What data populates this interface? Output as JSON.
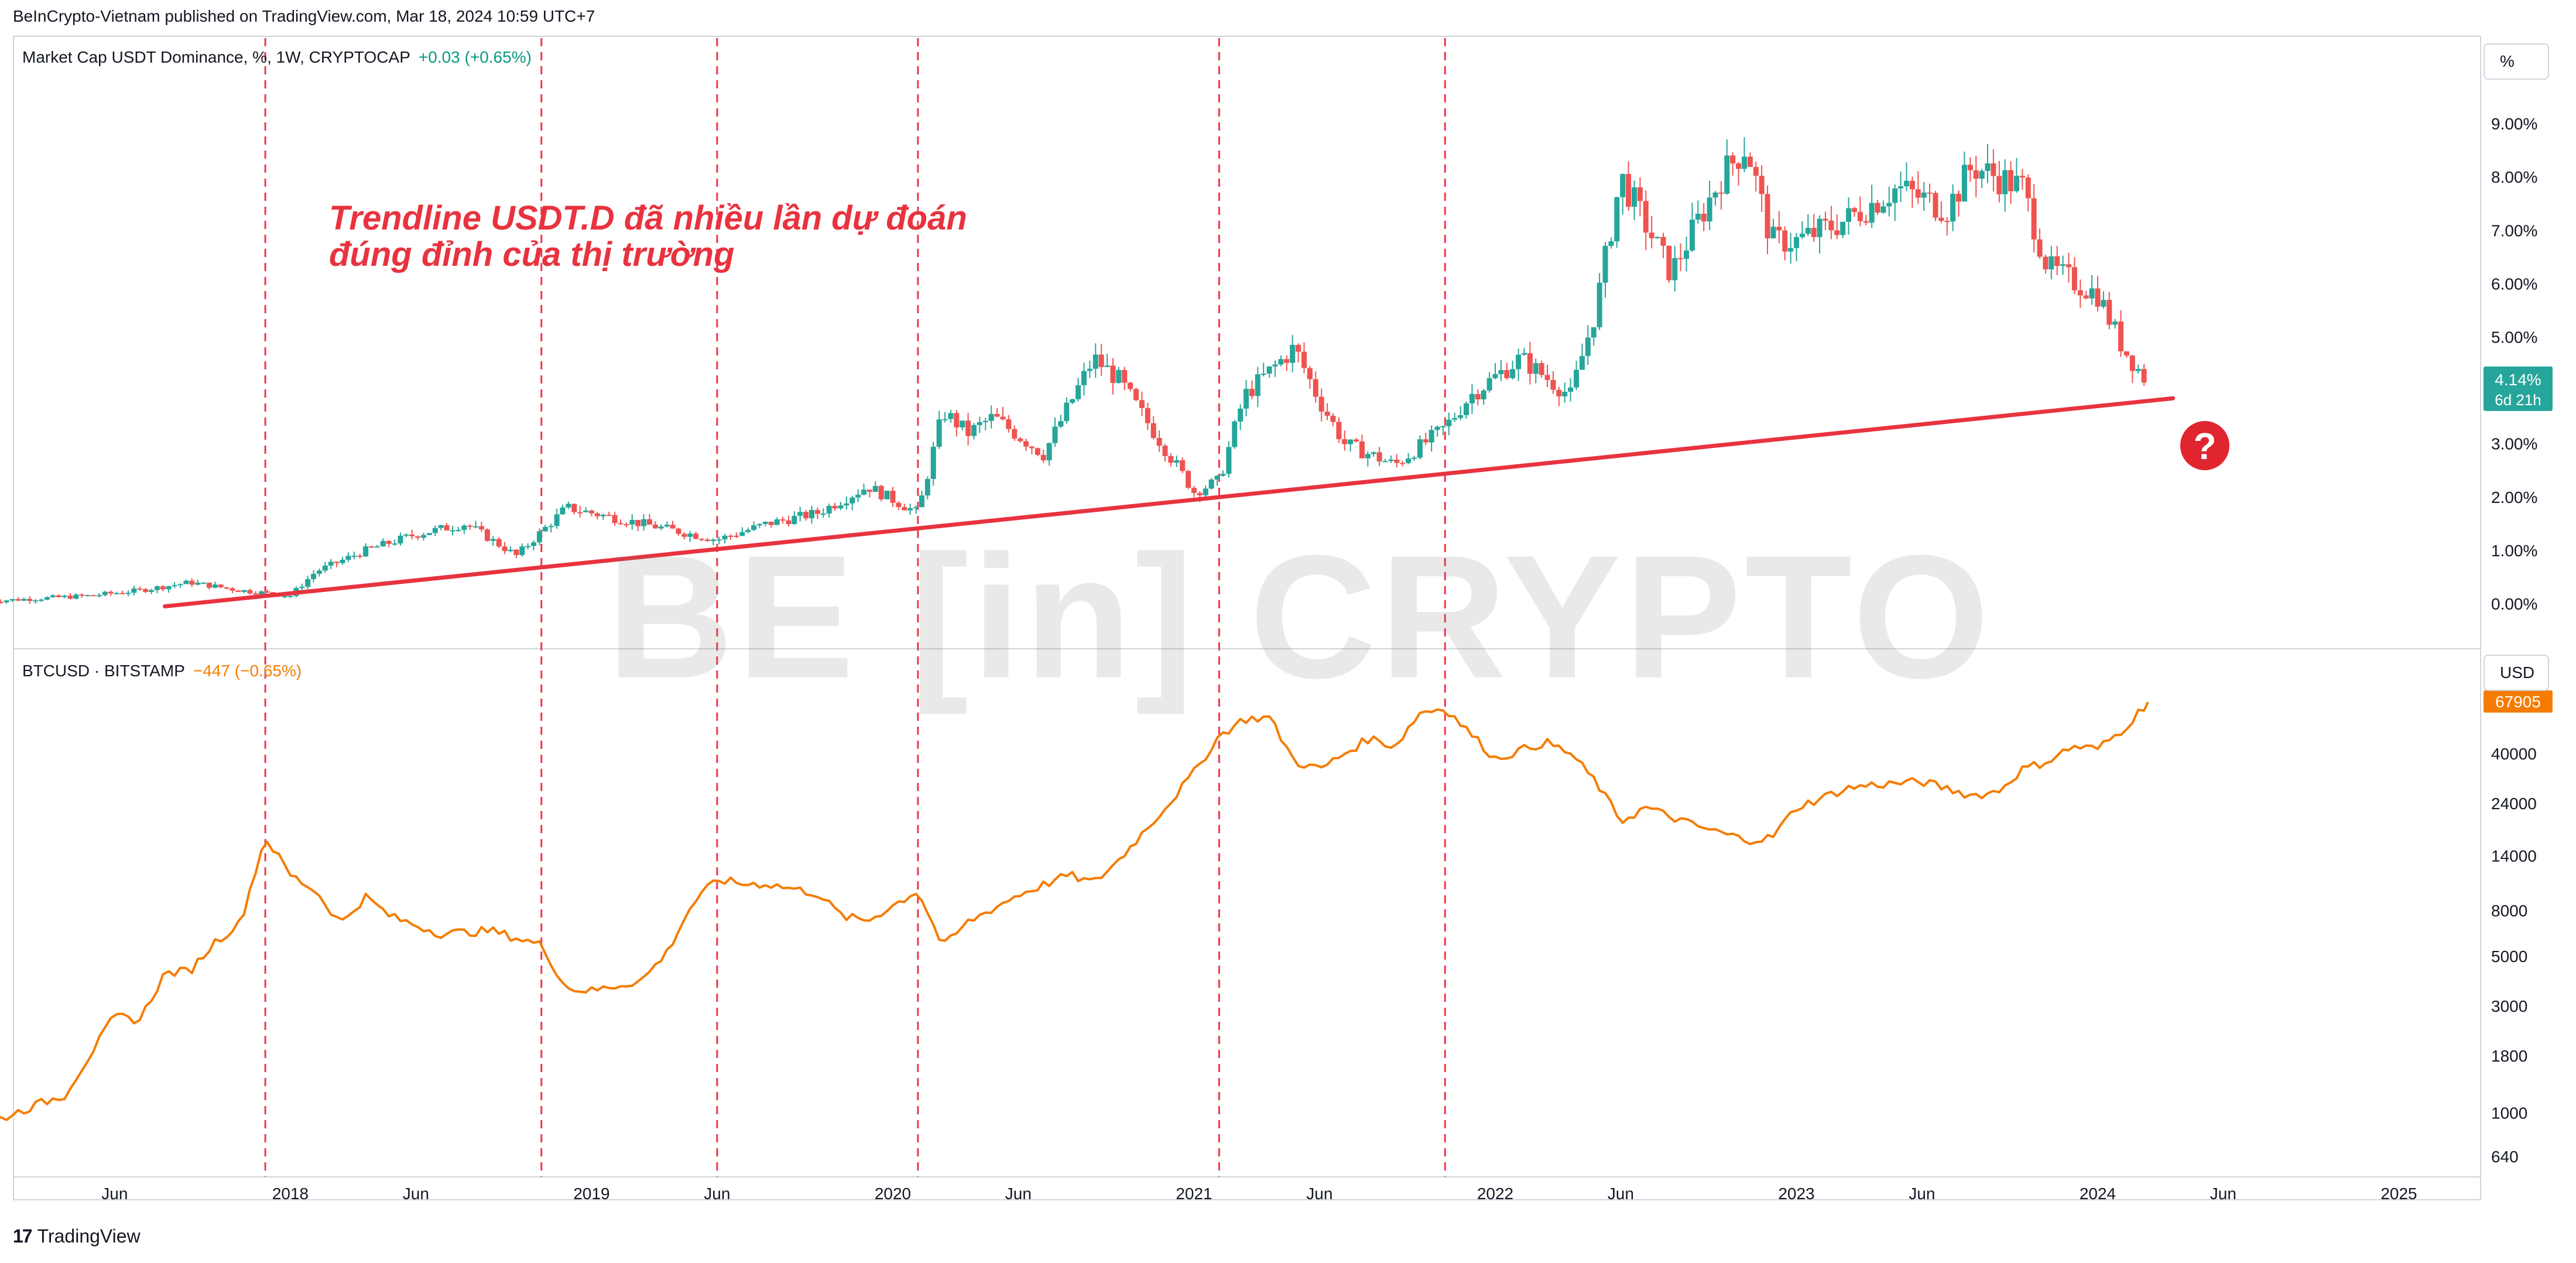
{
  "header": {
    "published_by": "BeInCrypto-Vietnam published on TradingView.com, Mar 18, 2024 10:59 UTC+7"
  },
  "legend_top": {
    "symbol": "Market Cap USDT Dominance, %, 1W, CRYPTOCAP",
    "change": "+0.03 (+0.65%)"
  },
  "legend_bottom": {
    "symbol": "BTCUSD · BITSTAMP",
    "change": "−447 (−0.65%)"
  },
  "axis_buttons": {
    "percent": "%",
    "usd": "USD"
  },
  "annotation": {
    "line1": "Trendline USDT.D đã nhiều lần dự đoán",
    "line2": "đúng đỉnh của thị trường"
  },
  "question_badge": "?",
  "watermark": "BE[in]CRYPTO",
  "price_tags": {
    "usdt_value": "4.14%",
    "usdt_countdown": "6d 21h",
    "btc_value": "67905"
  },
  "branding": {
    "logo": "17",
    "name": "TradingView"
  },
  "colors": {
    "candle_up": "#26a69a",
    "candle_down": "#ef5350",
    "btc_line": "#f57c00",
    "trendline": "#e8333f",
    "event_line": "#f23645",
    "grid": "#d1d4dc"
  },
  "chart_data": [
    {
      "type": "line",
      "title": "Market Cap USDT Dominance, %, 1W, CRYPTOCAP",
      "render_as": "candlestick",
      "x_format": "YYYY-MM",
      "y_unit": "%",
      "ylim": [
        -0.1,
        9.8
      ],
      "y_ticks": [
        "9.00%",
        "8.00%",
        "7.00%",
        "6.00%",
        "5.00%",
        "4.00%",
        "3.00%",
        "2.00%",
        "1.00%",
        "0.00%"
      ],
      "series": [
        {
          "x": [
            "2017-01",
            "2017-03",
            "2017-05",
            "2017-07",
            "2017-09",
            "2017-11",
            "2018-01",
            "2018-02",
            "2018-04",
            "2018-06",
            "2018-08",
            "2018-10",
            "2018-12",
            "2019-02",
            "2019-04",
            "2019-06",
            "2019-08",
            "2019-10",
            "2019-12",
            "2020-02",
            "2020-03",
            "2020-04",
            "2020-05",
            "2020-07",
            "2020-09",
            "2020-10",
            "2020-11",
            "2021-01",
            "2021-02",
            "2021-03",
            "2021-05",
            "2021-06",
            "2021-07",
            "2021-09",
            "2021-11",
            "2021-12",
            "2022-02",
            "2022-04",
            "2022-05",
            "2022-06",
            "2022-08",
            "2022-10",
            "2022-11",
            "2022-12",
            "2023-01",
            "2023-03",
            "2023-05",
            "2023-07",
            "2023-08",
            "2023-10",
            "2023-11",
            "2024-01",
            "2024-02",
            "2024-03"
          ],
          "values": [
            0.05,
            0.1,
            0.15,
            0.25,
            0.4,
            0.25,
            0.15,
            0.6,
            1.0,
            1.3,
            1.5,
            0.9,
            1.8,
            1.6,
            1.4,
            1.2,
            1.5,
            1.7,
            2.2,
            1.7,
            3.6,
            3.2,
            3.5,
            2.8,
            4.6,
            4.2,
            3.5,
            2.1,
            2.3,
            3.9,
            4.8,
            3.8,
            3.0,
            2.6,
            3.3,
            3.9,
            4.6,
            3.9,
            5.5,
            8.0,
            6.2,
            8.0,
            8.6,
            6.8,
            6.8,
            7.2,
            7.8,
            7.4,
            8.2,
            7.8,
            6.3,
            5.8,
            4.8,
            4.14
          ]
        }
      ],
      "trendline": {
        "from": {
          "x": "2017-08",
          "y": -0.05
        },
        "to": {
          "x": "2024-04",
          "y": 3.85
        }
      },
      "event_dates": [
        "2017-12",
        "2018-11",
        "2019-06",
        "2020-02",
        "2021-02",
        "2021-11"
      ]
    },
    {
      "type": "line",
      "title": "BTCUSD · BITSTAMP",
      "y_scale": "log",
      "x_format": "YYYY-MM",
      "y_unit": "USD",
      "ylim": [
        550,
        100000
      ],
      "y_ticks": [
        "40000",
        "24000",
        "14000",
        "8000",
        "5000",
        "3000",
        "1800",
        "1000",
        "640"
      ],
      "series": [
        {
          "x": [
            "2017-01",
            "2017-03",
            "2017-04",
            "2017-05",
            "2017-06",
            "2017-07",
            "2017-08",
            "2017-09",
            "2017-10",
            "2017-11",
            "2017-12",
            "2018-01",
            "2018-02",
            "2018-03",
            "2018-04",
            "2018-05",
            "2018-07",
            "2018-09",
            "2018-11",
            "2018-12",
            "2019-01",
            "2019-03",
            "2019-04",
            "2019-05",
            "2019-06",
            "2019-07",
            "2019-08",
            "2019-10",
            "2019-11",
            "2019-12",
            "2020-02",
            "2020-03",
            "2020-04",
            "2020-06",
            "2020-08",
            "2020-09",
            "2020-10",
            "2020-11",
            "2020-12",
            "2021-01",
            "2021-02",
            "2021-03",
            "2021-04",
            "2021-05",
            "2021-06",
            "2021-07",
            "2021-08",
            "2021-09",
            "2021-10",
            "2021-11",
            "2022-01",
            "2022-03",
            "2022-04",
            "2022-05",
            "2022-06",
            "2022-07",
            "2022-09",
            "2022-11",
            "2022-12",
            "2023-01",
            "2023-03",
            "2023-04",
            "2023-06",
            "2023-08",
            "2023-09",
            "2023-10",
            "2023-11",
            "2023-12",
            "2024-01",
            "2024-02",
            "2024-03"
          ],
          "values": [
            900,
            1100,
            1200,
            1800,
            2700,
            2600,
            4200,
            4300,
            5800,
            7000,
            17000,
            11500,
            9800,
            7000,
            9200,
            7500,
            6300,
            6500,
            5600,
            3600,
            3500,
            3900,
            5200,
            8500,
            11000,
            10500,
            10500,
            9500,
            7500,
            7200,
            9800,
            5500,
            7100,
            9400,
            11500,
            10600,
            13400,
            18000,
            24000,
            33000,
            48000,
            57000,
            58000,
            37000,
            34000,
            40000,
            47000,
            43000,
            61000,
            64000,
            38000,
            45000,
            40000,
            30000,
            20000,
            23000,
            19000,
            16500,
            16800,
            23000,
            28000,
            29000,
            30000,
            26000,
            27000,
            34000,
            37000,
            43000,
            42000,
            51000,
            67905
          ]
        }
      ]
    }
  ],
  "x_axis_labels": [
    "Jun",
    "2018",
    "Jun",
    "2019",
    "Jun",
    "2020",
    "Jun",
    "2021",
    "Jun",
    "2022",
    "Jun",
    "2023",
    "Jun",
    "2024",
    "Jun",
    "2025"
  ]
}
